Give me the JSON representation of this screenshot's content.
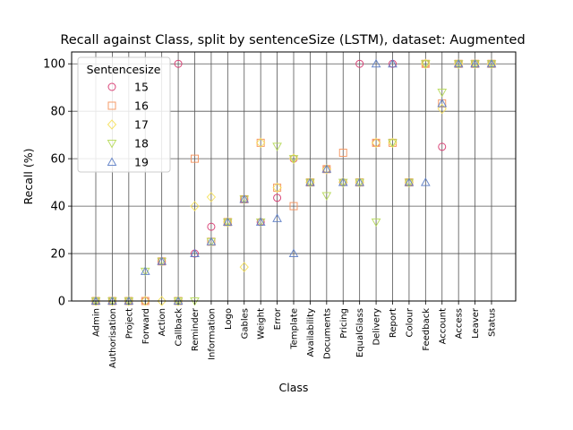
{
  "chart_data": {
    "type": "scatter",
    "title": "Recall against Class, split by sentenceSize (LSTM), dataset: Augmented",
    "xlabel": "Class",
    "ylabel": "Recall (%)",
    "ylim": [
      0,
      105
    ],
    "yticks": [
      0,
      20,
      40,
      60,
      80,
      100
    ],
    "grid": true,
    "legend": {
      "title": "Sentencesize",
      "position": "top-left"
    },
    "categories": [
      "Admin",
      "Authorisation",
      "Project",
      "Forward",
      "Action",
      "Callback",
      "Reminder",
      "Information",
      "Logo",
      "Gables",
      "Weight",
      "Error",
      "Template",
      "Availability",
      "Documents",
      "Pricing",
      "EqualGlass",
      "Delivery",
      "Report",
      "Colour",
      "Feedback",
      "Account",
      "Access",
      "Leaver",
      "Status"
    ],
    "series": [
      {
        "name": "15",
        "marker": "circle",
        "color": "#d6336c",
        "values": [
          0,
          0,
          0,
          0,
          16.7,
          100,
          20,
          31.3,
          33.3,
          42.9,
          33.3,
          43.5,
          60,
          50,
          55.6,
          50,
          100,
          66.7,
          100,
          50,
          100,
          65,
          100,
          100,
          100
        ]
      },
      {
        "name": "16",
        "marker": "square",
        "color": "#f59058",
        "values": [
          0,
          0,
          0,
          0,
          16.7,
          0,
          60,
          25,
          33.3,
          42.9,
          66.7,
          47.8,
          40,
          50,
          55.6,
          62.5,
          50,
          66.7,
          66.7,
          50,
          100,
          83.3,
          100,
          100,
          100
        ]
      },
      {
        "name": "17",
        "marker": "diamond",
        "color": "#f5e05a",
        "values": [
          0,
          0,
          0,
          0,
          0,
          0,
          40,
          43.8,
          33.3,
          14.3,
          66.7,
          47.8,
          60,
          50,
          55.6,
          50,
          50,
          66.7,
          66.7,
          50,
          100,
          81,
          100,
          100,
          100
        ]
      },
      {
        "name": "18",
        "marker": "triangle-down",
        "color": "#b5d955",
        "values": [
          0,
          0,
          0,
          12.5,
          16.7,
          0,
          0,
          25,
          33.3,
          42.9,
          33.3,
          65.2,
          60,
          50,
          44.4,
          50,
          50,
          33.3,
          66.7,
          50,
          100,
          88,
          100,
          100,
          100
        ]
      },
      {
        "name": "19",
        "marker": "triangle-up",
        "color": "#5b7cc4",
        "values": [
          0,
          0,
          0,
          12.5,
          16.7,
          0,
          20,
          25,
          33.3,
          42.9,
          33.3,
          34.8,
          20,
          50,
          55.6,
          50,
          50,
          100,
          100,
          50,
          50,
          83.3,
          100,
          100,
          100
        ]
      }
    ]
  }
}
